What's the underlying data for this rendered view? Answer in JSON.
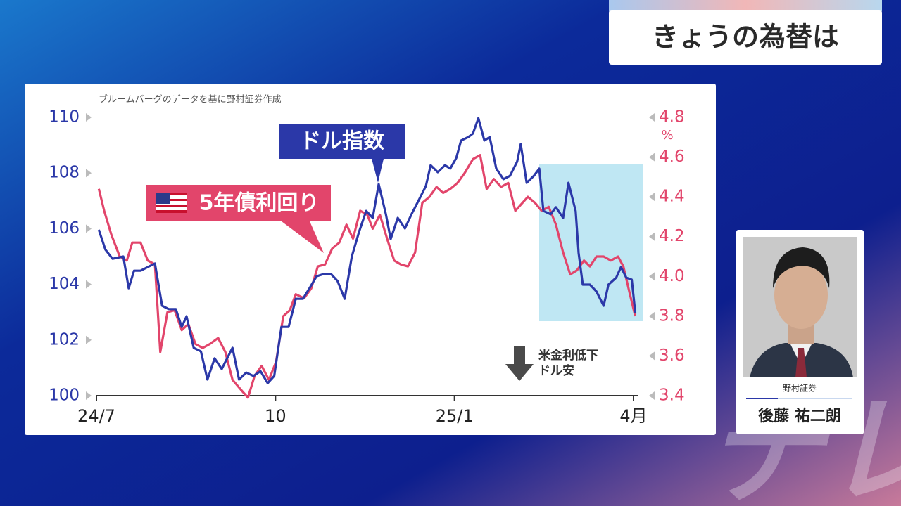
{
  "header": {
    "title": "きょうの為替は"
  },
  "chart_data": {
    "type": "line",
    "source": "ブルームバーグのデータを基に野村証券作成",
    "annotations": [
      "米金利低下",
      "ドル安"
    ],
    "y2_unit": "%",
    "xlim": [
      0,
      9
    ],
    "xticks": [
      {
        "value": 0,
        "label": "24/7"
      },
      {
        "value": 3,
        "label": "10"
      },
      {
        "value": 6,
        "label": "25/1"
      },
      {
        "value": 9,
        "label": "4月"
      }
    ],
    "ylim": [
      100,
      110
    ],
    "yticks": [
      100,
      102,
      104,
      106,
      108,
      110
    ],
    "y2lim": [
      3.4,
      4.8
    ],
    "y2ticks": [
      3.4,
      3.6,
      3.8,
      4.0,
      4.2,
      4.4,
      4.6,
      4.8
    ],
    "series": [
      {
        "name": "ドル指数",
        "color": "#2b38a8",
        "x": [
          0.04,
          0.15,
          0.27,
          0.45,
          0.54,
          0.63,
          0.74,
          0.86,
          0.98,
          1.1,
          1.21,
          1.33,
          1.43,
          1.51,
          1.63,
          1.75,
          1.86,
          1.98,
          2.1,
          2.28,
          2.39,
          2.51,
          2.63,
          2.75,
          2.87,
          2.98,
          3.1,
          3.22,
          3.34,
          3.46,
          3.57,
          3.69,
          3.81,
          3.93,
          4.04,
          4.16,
          4.28,
          4.4,
          4.52,
          4.63,
          4.73,
          4.85,
          4.93,
          5.05,
          5.17,
          5.28,
          5.4,
          5.52,
          5.6,
          5.72,
          5.84,
          5.93,
          6.03,
          6.11,
          6.23,
          6.31,
          6.4,
          6.5,
          6.59,
          6.7,
          6.82,
          6.93,
          7.05,
          7.11,
          7.21,
          7.33,
          7.42,
          7.49,
          7.61,
          7.7,
          7.82,
          7.91,
          8.03,
          8.08,
          8.15,
          8.27,
          8.38,
          8.5,
          8.58,
          8.71,
          8.79,
          8.88,
          8.97,
          9.03
        ],
        "values": [
          105.96,
          105.25,
          104.92,
          105.0,
          103.86,
          104.49,
          104.49,
          104.62,
          104.75,
          103.23,
          103.11,
          103.11,
          102.47,
          102.85,
          101.72,
          101.59,
          100.58,
          101.34,
          100.96,
          101.72,
          100.58,
          100.83,
          100.71,
          100.88,
          100.45,
          100.71,
          102.47,
          102.47,
          103.48,
          103.48,
          103.86,
          104.29,
          104.37,
          104.37,
          104.12,
          103.48,
          105.0,
          105.88,
          106.64,
          106.39,
          107.6,
          106.52,
          105.63,
          106.39,
          106.01,
          106.52,
          107.02,
          107.53,
          108.28,
          108.03,
          108.28,
          108.16,
          108.54,
          109.17,
          109.29,
          109.42,
          109.97,
          109.17,
          109.29,
          108.16,
          107.78,
          107.9,
          108.41,
          109.04,
          107.65,
          107.9,
          108.16,
          106.64,
          106.52,
          106.77,
          106.39,
          107.65,
          106.64,
          105.13,
          103.99,
          103.99,
          103.74,
          103.23,
          103.99,
          104.24,
          104.62,
          104.24,
          104.17,
          102.98
        ]
      },
      {
        "name": "5年債利回り",
        "color": "#e2456b",
        "axis": "y2",
        "x": [
          0.04,
          0.13,
          0.25,
          0.39,
          0.51,
          0.6,
          0.74,
          0.86,
          0.98,
          1.07,
          1.19,
          1.31,
          1.43,
          1.54,
          1.66,
          1.78,
          1.9,
          2.04,
          2.16,
          2.28,
          2.42,
          2.54,
          2.65,
          2.77,
          2.89,
          3.01,
          3.13,
          3.24,
          3.34,
          3.48,
          3.6,
          3.71,
          3.83,
          3.95,
          4.07,
          4.19,
          4.3,
          4.42,
          4.54,
          4.63,
          4.75,
          4.87,
          4.99,
          5.1,
          5.22,
          5.34,
          5.46,
          5.58,
          5.7,
          5.81,
          5.93,
          6.05,
          6.17,
          6.31,
          6.43,
          6.54,
          6.66,
          6.78,
          6.9,
          7.02,
          7.14,
          7.23,
          7.35,
          7.46,
          7.58,
          7.7,
          7.82,
          7.94,
          8.05,
          8.17,
          8.27,
          8.38,
          8.5,
          8.62,
          8.74,
          8.83,
          8.94,
          9.03
        ],
        "values": [
          4.44,
          4.33,
          4.21,
          4.1,
          4.08,
          4.17,
          4.17,
          4.08,
          4.06,
          3.62,
          3.82,
          3.83,
          3.73,
          3.76,
          3.66,
          3.64,
          3.66,
          3.69,
          3.62,
          3.48,
          3.43,
          3.39,
          3.5,
          3.55,
          3.48,
          3.57,
          3.8,
          3.83,
          3.91,
          3.89,
          3.94,
          4.05,
          4.06,
          4.14,
          4.17,
          4.26,
          4.19,
          4.33,
          4.31,
          4.24,
          4.31,
          4.19,
          4.08,
          4.06,
          4.05,
          4.12,
          4.37,
          4.4,
          4.45,
          4.42,
          4.44,
          4.47,
          4.52,
          4.59,
          4.61,
          4.44,
          4.49,
          4.45,
          4.47,
          4.33,
          4.37,
          4.4,
          4.37,
          4.33,
          4.35,
          4.26,
          4.12,
          4.01,
          4.03,
          4.08,
          4.05,
          4.1,
          4.1,
          4.08,
          4.1,
          4.05,
          3.91,
          3.8
        ]
      }
    ]
  },
  "guest": {
    "affiliation": "野村証券",
    "name": "後藤 祐二朗"
  },
  "watermark": "テレ東"
}
